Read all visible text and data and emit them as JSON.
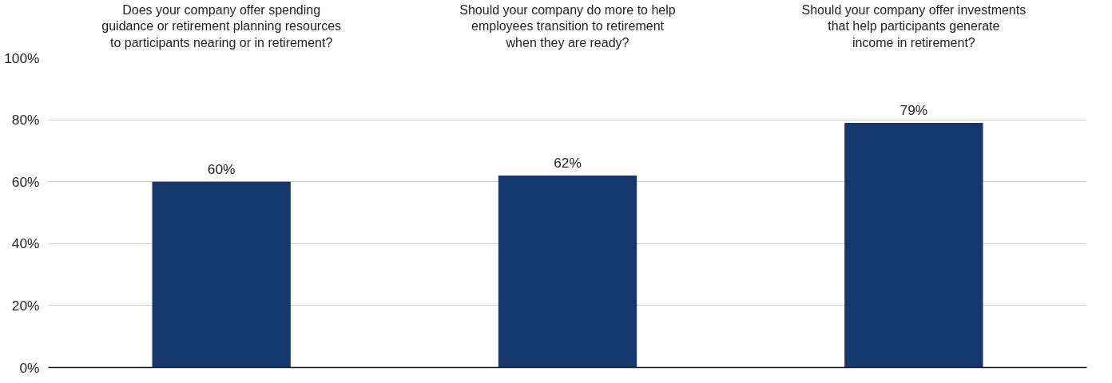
{
  "chart_data": {
    "type": "bar",
    "categories": [
      "Does your company offer spending\nguidance or retirement planning resources\nto participants nearing or in retirement?",
      "Should your company do more to help\nemployees transition to retirement\nwhen they are ready?",
      "Should your company offer investments\nthat help participants generate\nincome in retirement?"
    ],
    "values": [
      60,
      62,
      79
    ],
    "value_labels": [
      "60%",
      "62%",
      "79%"
    ],
    "color": "#14386e",
    "ylim": [
      0,
      100
    ],
    "yticks": [
      {
        "value": 0,
        "label": "0%"
      },
      {
        "value": 20,
        "label": "20%"
      },
      {
        "value": 40,
        "label": "40%"
      },
      {
        "value": 60,
        "label": "60%"
      },
      {
        "value": 80,
        "label": "80%"
      },
      {
        "value": 100,
        "label": "100%"
      }
    ],
    "grid": "y"
  }
}
